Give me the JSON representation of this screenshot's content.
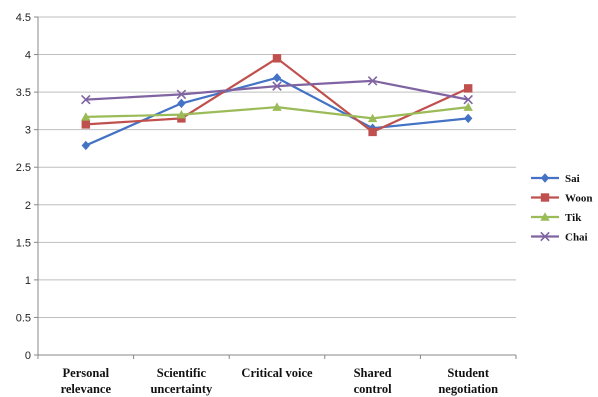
{
  "chart_data": {
    "type": "line",
    "title": "",
    "xlabel": "",
    "ylabel": "",
    "categories": [
      [
        "Personal",
        "relevance"
      ],
      [
        "Scientific",
        "uncertainty"
      ],
      [
        "Critical voice"
      ],
      [
        "Shared",
        "control"
      ],
      [
        "Student",
        "negotiation"
      ]
    ],
    "ylim": [
      0,
      4.5
    ],
    "yticks": [
      "0",
      "0.5",
      "1",
      "1.5",
      "2",
      "2.5",
      "3",
      "3.5",
      "4",
      "4.5"
    ],
    "grid": "horizontal",
    "legend_position": "right",
    "series": [
      {
        "name": "Sai",
        "color": "#4472C4",
        "marker": "diamond",
        "values": [
          2.79,
          3.35,
          3.69,
          3.02,
          3.15
        ]
      },
      {
        "name": "Woon",
        "color": "#C0504D",
        "marker": "square",
        "values": [
          3.07,
          3.15,
          3.95,
          2.97,
          3.55
        ]
      },
      {
        "name": "Tik",
        "color": "#9BBB59",
        "marker": "triangle",
        "values": [
          3.17,
          3.2,
          3.3,
          3.15,
          3.3
        ]
      },
      {
        "name": "Chai",
        "color": "#8064A2",
        "marker": "x",
        "values": [
          3.4,
          3.47,
          3.58,
          3.65,
          3.4
        ]
      }
    ]
  }
}
